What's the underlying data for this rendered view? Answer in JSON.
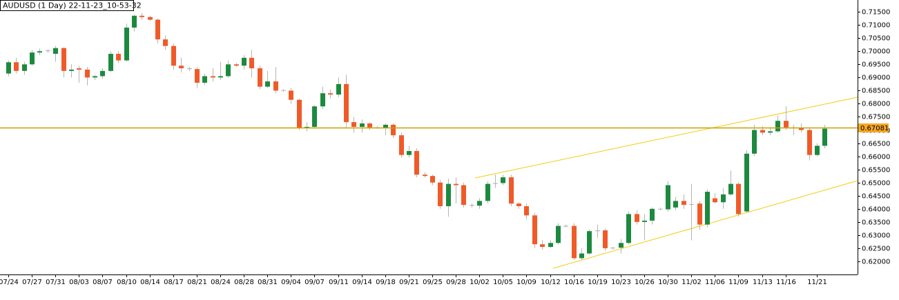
{
  "chart_data": {
    "type": "candlestick",
    "title": "AUDUSD (1 Day) 22-11-23_10-53-32",
    "categories": [
      "07/24",
      null,
      null,
      "07/27",
      null,
      null,
      "07/31",
      null,
      null,
      "08/03",
      null,
      null,
      "08/07",
      null,
      null,
      "08/10",
      null,
      null,
      "08/14",
      null,
      null,
      "08/17",
      null,
      null,
      "08/21",
      null,
      null,
      "08/24",
      null,
      null,
      "08/28",
      null,
      null,
      "08/31",
      null,
      null,
      "09/04",
      null,
      null,
      "09/07",
      null,
      null,
      "09/11",
      null,
      null,
      "09/14",
      null,
      null,
      "09/18",
      null,
      null,
      "09/21",
      null,
      null,
      "09/25",
      null,
      null,
      "09/28",
      null,
      null,
      "10/02",
      null,
      null,
      "10/05",
      null,
      null,
      "10/09",
      null,
      null,
      "10/12",
      null,
      null,
      "10/16",
      null,
      null,
      "10/19",
      null,
      null,
      "10/23",
      null,
      null,
      "10/26",
      null,
      null,
      "10/30",
      null,
      null,
      "11/02",
      null,
      null,
      "11/06",
      null,
      null,
      "11/09",
      null,
      null,
      "11/13",
      null,
      null,
      "11/16",
      null,
      null,
      null,
      "11/21",
      null
    ],
    "open": [
      0.6915,
      0.6958,
      0.6925,
      0.695,
      0.6995,
      0.7,
      0.699,
      0.7012,
      0.6925,
      0.6935,
      0.693,
      0.69,
      0.6905,
      0.6925,
      0.699,
      0.6965,
      0.709,
      0.7135,
      0.713,
      0.712,
      0.7045,
      0.702,
      0.6945,
      0.6935,
      0.6932,
      0.688,
      0.6905,
      0.69,
      0.6905,
      0.695,
      0.6945,
      0.6975,
      0.6935,
      0.6865,
      0.6885,
      0.685,
      0.685,
      0.6815,
      0.6708,
      0.6712,
      0.679,
      0.684,
      0.6835,
      0.6875,
      0.673,
      0.6712,
      0.6725,
      0.671,
      0.6708,
      0.672,
      0.668,
      0.6605,
      0.662,
      0.653,
      0.6525,
      0.65,
      0.641,
      0.6495,
      0.649,
      0.6415,
      0.6412,
      0.643,
      0.6495,
      0.6498,
      0.652,
      0.642,
      0.641,
      0.6375,
      0.6265,
      0.6255,
      0.627,
      0.6335,
      0.6335,
      0.6212,
      0.623,
      0.6315,
      0.6318,
      0.625,
      0.6252,
      0.627,
      0.638,
      0.635,
      0.6355,
      0.64,
      0.6398,
      0.6405,
      0.643,
      0.6415,
      0.642,
      0.634,
      0.644,
      0.6425,
      0.6455,
      0.6495,
      0.639,
      0.661,
      0.67,
      0.669,
      0.6695,
      0.6735,
      0.671,
      0.6708,
      0.67,
      0.6605,
      0.664
    ],
    "high": [
      0.6965,
      0.6975,
      0.696,
      0.7005,
      0.701,
      0.7008,
      0.702,
      0.7015,
      0.695,
      0.6945,
      0.694,
      0.691,
      0.6935,
      0.7,
      0.7,
      0.7105,
      0.714,
      0.7145,
      0.7135,
      0.7125,
      0.706,
      0.703,
      0.6975,
      0.694,
      0.694,
      0.6915,
      0.6935,
      0.696,
      0.6965,
      0.6955,
      0.6985,
      0.7005,
      0.6945,
      0.6925,
      0.694,
      0.6855,
      0.686,
      0.682,
      0.673,
      0.6795,
      0.6865,
      0.6855,
      0.69,
      0.691,
      0.675,
      0.674,
      0.673,
      0.6715,
      0.6725,
      0.6725,
      0.669,
      0.664,
      0.663,
      0.654,
      0.653,
      0.651,
      0.6515,
      0.652,
      0.65,
      0.642,
      0.644,
      0.6505,
      0.653,
      0.653,
      0.653,
      0.6425,
      0.642,
      0.6385,
      0.628,
      0.628,
      0.6345,
      0.634,
      0.6345,
      0.625,
      0.632,
      0.634,
      0.6325,
      0.6255,
      0.6285,
      0.639,
      0.6395,
      0.638,
      0.6405,
      0.6405,
      0.6505,
      0.6445,
      0.6455,
      0.6495,
      0.643,
      0.6475,
      0.646,
      0.648,
      0.6545,
      0.65,
      0.6625,
      0.672,
      0.6715,
      0.671,
      0.6755,
      0.679,
      0.672,
      0.6725,
      0.671,
      0.665,
      0.672
    ],
    "low": [
      0.6905,
      0.6915,
      0.691,
      0.6945,
      0.6985,
      0.6995,
      0.696,
      0.69,
      0.69,
      0.688,
      0.687,
      0.689,
      0.6895,
      0.692,
      0.6955,
      0.696,
      0.7075,
      0.712,
      0.7115,
      0.703,
      0.7005,
      0.693,
      0.692,
      0.6925,
      0.686,
      0.687,
      0.6885,
      0.689,
      0.69,
      0.694,
      0.693,
      0.69,
      0.6855,
      0.686,
      0.684,
      0.6845,
      0.68,
      0.67,
      0.6695,
      0.6705,
      0.678,
      0.682,
      0.6825,
      0.671,
      0.669,
      0.669,
      0.67,
      0.6705,
      0.668,
      0.667,
      0.6595,
      0.6595,
      0.652,
      0.652,
      0.649,
      0.64,
      0.637,
      0.642,
      0.6405,
      0.6405,
      0.64,
      0.642,
      0.648,
      0.649,
      0.641,
      0.64,
      0.636,
      0.625,
      0.6245,
      0.625,
      0.6265,
      0.633,
      0.6205,
      0.6205,
      0.6225,
      0.629,
      0.624,
      0.6245,
      0.623,
      0.6265,
      0.634,
      0.628,
      0.634,
      0.6395,
      0.639,
      0.6395,
      0.64,
      0.628,
      0.632,
      0.633,
      0.642,
      0.64,
      0.645,
      0.637,
      0.6385,
      0.66,
      0.668,
      0.668,
      0.669,
      0.67,
      0.668,
      0.669,
      0.6585,
      0.66,
      0.663
    ],
    "close": [
      0.6958,
      0.6925,
      0.695,
      0.6995,
      0.7,
      0.7003,
      0.7012,
      0.6925,
      0.693,
      0.693,
      0.69,
      0.6905,
      0.6925,
      0.699,
      0.6965,
      0.709,
      0.7135,
      0.713,
      0.712,
      0.7045,
      0.702,
      0.6945,
      0.6935,
      0.6932,
      0.688,
      0.6905,
      0.69,
      0.6905,
      0.695,
      0.6945,
      0.6975,
      0.6935,
      0.6865,
      0.6885,
      0.685,
      0.6852,
      0.6815,
      0.6708,
      0.6712,
      0.679,
      0.684,
      0.6835,
      0.6875,
      0.673,
      0.6712,
      0.6725,
      0.671,
      0.6708,
      0.672,
      0.668,
      0.6605,
      0.662,
      0.653,
      0.6525,
      0.65,
      0.641,
      0.6495,
      0.649,
      0.6415,
      0.6412,
      0.643,
      0.6495,
      0.6498,
      0.652,
      0.642,
      0.641,
      0.6375,
      0.6265,
      0.6255,
      0.627,
      0.6335,
      0.6332,
      0.6212,
      0.623,
      0.6315,
      0.6318,
      0.625,
      0.6252,
      0.627,
      0.638,
      0.635,
      0.6355,
      0.64,
      0.6398,
      0.649,
      0.643,
      0.6415,
      0.6418,
      0.634,
      0.6465,
      0.6425,
      0.6455,
      0.6495,
      0.638,
      0.661,
      0.67,
      0.669,
      0.6695,
      0.6735,
      0.671,
      0.6708,
      0.67,
      0.6605,
      0.664,
      0.6705
    ],
    "up_color": "#1c8a3e",
    "down_color": "#f05a28",
    "doji_color": "#b4b4b4",
    "ylim": [
      0.615,
      0.7195
    ],
    "yticks": [
      {
        "value": 0.62,
        "label": "0.62000"
      },
      {
        "value": 0.625,
        "label": "0.62500"
      },
      {
        "value": 0.63,
        "label": "0.63000"
      },
      {
        "value": 0.635,
        "label": "0.63500"
      },
      {
        "value": 0.64,
        "label": "0.64000"
      },
      {
        "value": 0.645,
        "label": "0.64500"
      },
      {
        "value": 0.65,
        "label": "0.65000"
      },
      {
        "value": 0.655,
        "label": "0.65500"
      },
      {
        "value": 0.66,
        "label": "0.66000"
      },
      {
        "value": 0.665,
        "label": "0.66500"
      },
      {
        "value": 0.67,
        "label": "0.67000"
      },
      {
        "value": 0.675,
        "label": "0.67500"
      },
      {
        "value": 0.68,
        "label": "0.68000"
      },
      {
        "value": 0.685,
        "label": "0.68500"
      },
      {
        "value": 0.69,
        "label": "0.69000"
      },
      {
        "value": 0.695,
        "label": "0.69500"
      },
      {
        "value": 0.7,
        "label": "0.70000"
      },
      {
        "value": 0.705,
        "label": "0.70500"
      },
      {
        "value": 0.71,
        "label": "0.71000"
      },
      {
        "value": 0.715,
        "label": "0.71500"
      }
    ],
    "hline": {
      "value": 0.67081,
      "color": "#c9a000",
      "label_color": "#f5a623"
    }
  }
}
